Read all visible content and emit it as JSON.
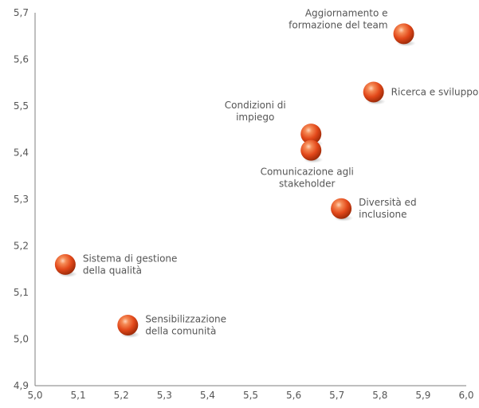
{
  "chart_data": {
    "type": "scatter",
    "title": "",
    "xlabel": "",
    "ylabel": "",
    "xlim": [
      5.0,
      6.0
    ],
    "ylim": [
      4.9,
      5.7
    ],
    "xticks": [
      "5,0",
      "5,1",
      "5,2",
      "5,3",
      "5,4",
      "5,5",
      "5,6",
      "5,7",
      "5,8",
      "5,9",
      "6,0"
    ],
    "yticks": [
      "4,9",
      "5,0",
      "5,1",
      "5,2",
      "5,3",
      "5,4",
      "5,5",
      "5,6",
      "5,7"
    ],
    "grid": false,
    "marker_color": "#e8501e",
    "points": [
      {
        "x": 5.07,
        "y": 5.16,
        "label": [
          "Sistema di gestione",
          "della qualità"
        ],
        "label_pos": "right"
      },
      {
        "x": 5.215,
        "y": 5.03,
        "label": [
          "Sensibilizzazione",
          "della comunità"
        ],
        "label_pos": "right"
      },
      {
        "x": 5.64,
        "y": 5.44,
        "label": [
          "Condizioni di",
          "impiego"
        ],
        "label_pos": "upper-left"
      },
      {
        "x": 5.64,
        "y": 5.405,
        "label": [
          "Comunicazione agli",
          "stakeholder"
        ],
        "label_pos": "below"
      },
      {
        "x": 5.71,
        "y": 5.28,
        "label": [
          "Diversità ed",
          "inclusione"
        ],
        "label_pos": "right"
      },
      {
        "x": 5.785,
        "y": 5.53,
        "label": [
          "Ricerca e sviluppo"
        ],
        "label_pos": "right"
      },
      {
        "x": 5.855,
        "y": 5.655,
        "label": [
          "Aggiornamento e",
          "formazione del team"
        ],
        "label_pos": "left"
      }
    ]
  }
}
